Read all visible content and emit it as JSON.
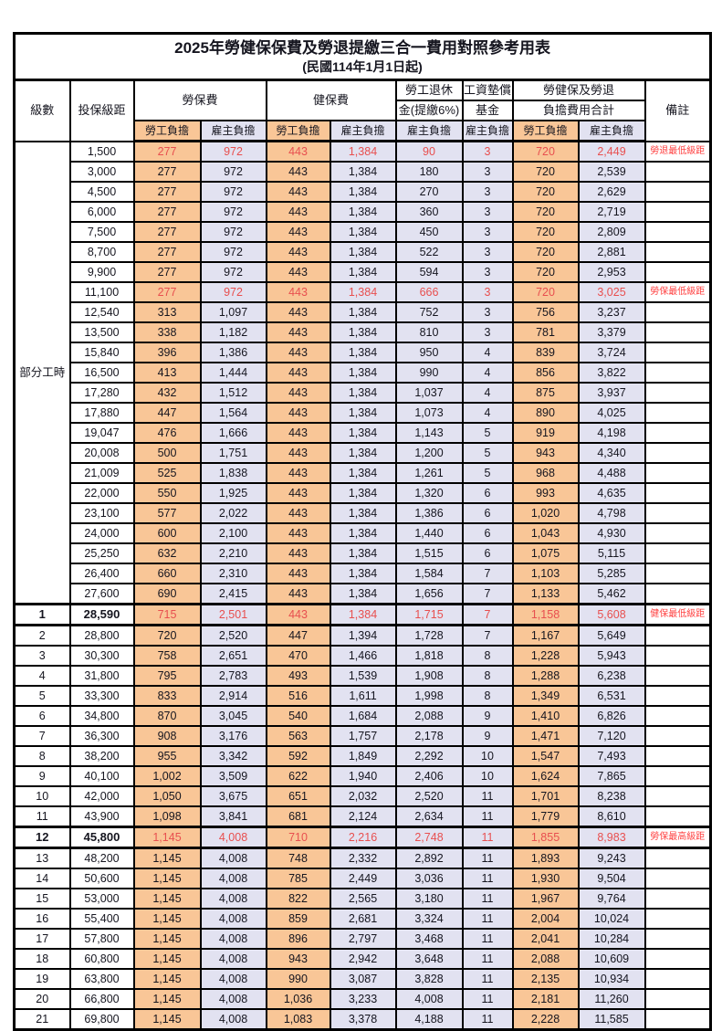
{
  "title": "2025年勞健保保費及勞退提繳三合一費用對照參考用表",
  "subtitle": "(民國114年1月1日起)",
  "colors": {
    "orange": "#F9C697",
    "lavender": "#E2E2F1",
    "highlight_red": "#E84F4F",
    "remark_red": "#FF4040"
  },
  "header": {
    "level": "級數",
    "bracket": "投保級距",
    "labor_insurance": "勞保費",
    "health_insurance": "健保費",
    "pension_line1": "勞工退休",
    "pension_line2": "金(提繳6%)",
    "wage_fund_line1": "工資墊償",
    "wage_fund_line2": "基金",
    "total_line1": "勞健保及勞退",
    "total_line2": "負擔費用合計",
    "remark": "備註",
    "employee_burden": "勞工負擔",
    "employer_burden": "雇主負擔"
  },
  "group_label": "部分工時",
  "group_span": 23,
  "highlight_rows": [
    0,
    7,
    23,
    34
  ],
  "key_rows": [
    23,
    34
  ],
  "section_rows": [
    23,
    34
  ],
  "rows": [
    [
      "",
      "1,500",
      "277",
      "972",
      "443",
      "1,384",
      "90",
      "3",
      "720",
      "2,449",
      "勞退最低級距"
    ],
    [
      "",
      "3,000",
      "277",
      "972",
      "443",
      "1,384",
      "180",
      "3",
      "720",
      "2,539",
      ""
    ],
    [
      "",
      "4,500",
      "277",
      "972",
      "443",
      "1,384",
      "270",
      "3",
      "720",
      "2,629",
      ""
    ],
    [
      "",
      "6,000",
      "277",
      "972",
      "443",
      "1,384",
      "360",
      "3",
      "720",
      "2,719",
      ""
    ],
    [
      "",
      "7,500",
      "277",
      "972",
      "443",
      "1,384",
      "450",
      "3",
      "720",
      "2,809",
      ""
    ],
    [
      "",
      "8,700",
      "277",
      "972",
      "443",
      "1,384",
      "522",
      "3",
      "720",
      "2,881",
      ""
    ],
    [
      "",
      "9,900",
      "277",
      "972",
      "443",
      "1,384",
      "594",
      "3",
      "720",
      "2,953",
      ""
    ],
    [
      "",
      "11,100",
      "277",
      "972",
      "443",
      "1,384",
      "666",
      "3",
      "720",
      "3,025",
      "勞保最低級距"
    ],
    [
      "",
      "12,540",
      "313",
      "1,097",
      "443",
      "1,384",
      "752",
      "3",
      "756",
      "3,237",
      ""
    ],
    [
      "",
      "13,500",
      "338",
      "1,182",
      "443",
      "1,384",
      "810",
      "3",
      "781",
      "3,379",
      ""
    ],
    [
      "",
      "15,840",
      "396",
      "1,386",
      "443",
      "1,384",
      "950",
      "4",
      "839",
      "3,724",
      ""
    ],
    [
      "",
      "16,500",
      "413",
      "1,444",
      "443",
      "1,384",
      "990",
      "4",
      "856",
      "3,822",
      ""
    ],
    [
      "",
      "17,280",
      "432",
      "1,512",
      "443",
      "1,384",
      "1,037",
      "4",
      "875",
      "3,937",
      ""
    ],
    [
      "",
      "17,880",
      "447",
      "1,564",
      "443",
      "1,384",
      "1,073",
      "4",
      "890",
      "4,025",
      ""
    ],
    [
      "",
      "19,047",
      "476",
      "1,666",
      "443",
      "1,384",
      "1,143",
      "5",
      "919",
      "4,198",
      ""
    ],
    [
      "",
      "20,008",
      "500",
      "1,751",
      "443",
      "1,384",
      "1,200",
      "5",
      "943",
      "4,340",
      ""
    ],
    [
      "",
      "21,009",
      "525",
      "1,838",
      "443",
      "1,384",
      "1,261",
      "5",
      "968",
      "4,488",
      ""
    ],
    [
      "",
      "22,000",
      "550",
      "1,925",
      "443",
      "1,384",
      "1,320",
      "6",
      "993",
      "4,635",
      ""
    ],
    [
      "",
      "23,100",
      "577",
      "2,022",
      "443",
      "1,384",
      "1,386",
      "6",
      "1,020",
      "4,798",
      ""
    ],
    [
      "",
      "24,000",
      "600",
      "2,100",
      "443",
      "1,384",
      "1,440",
      "6",
      "1,043",
      "4,930",
      ""
    ],
    [
      "",
      "25,250",
      "632",
      "2,210",
      "443",
      "1,384",
      "1,515",
      "6",
      "1,075",
      "5,115",
      ""
    ],
    [
      "",
      "26,400",
      "660",
      "2,310",
      "443",
      "1,384",
      "1,584",
      "7",
      "1,103",
      "5,285",
      ""
    ],
    [
      "",
      "27,600",
      "690",
      "2,415",
      "443",
      "1,384",
      "1,656",
      "7",
      "1,133",
      "5,462",
      ""
    ],
    [
      "1",
      "28,590",
      "715",
      "2,501",
      "443",
      "1,384",
      "1,715",
      "7",
      "1,158",
      "5,608",
      "健保最低級距"
    ],
    [
      "2",
      "28,800",
      "720",
      "2,520",
      "447",
      "1,394",
      "1,728",
      "7",
      "1,167",
      "5,649",
      ""
    ],
    [
      "3",
      "30,300",
      "758",
      "2,651",
      "470",
      "1,466",
      "1,818",
      "8",
      "1,228",
      "5,943",
      ""
    ],
    [
      "4",
      "31,800",
      "795",
      "2,783",
      "493",
      "1,539",
      "1,908",
      "8",
      "1,288",
      "6,238",
      ""
    ],
    [
      "5",
      "33,300",
      "833",
      "2,914",
      "516",
      "1,611",
      "1,998",
      "8",
      "1,349",
      "6,531",
      ""
    ],
    [
      "6",
      "34,800",
      "870",
      "3,045",
      "540",
      "1,684",
      "2,088",
      "9",
      "1,410",
      "6,826",
      ""
    ],
    [
      "7",
      "36,300",
      "908",
      "3,176",
      "563",
      "1,757",
      "2,178",
      "9",
      "1,471",
      "7,120",
      ""
    ],
    [
      "8",
      "38,200",
      "955",
      "3,342",
      "592",
      "1,849",
      "2,292",
      "10",
      "1,547",
      "7,493",
      ""
    ],
    [
      "9",
      "40,100",
      "1,002",
      "3,509",
      "622",
      "1,940",
      "2,406",
      "10",
      "1,624",
      "7,865",
      ""
    ],
    [
      "10",
      "42,000",
      "1,050",
      "3,675",
      "651",
      "2,032",
      "2,520",
      "11",
      "1,701",
      "8,238",
      ""
    ],
    [
      "11",
      "43,900",
      "1,098",
      "3,841",
      "681",
      "2,124",
      "2,634",
      "11",
      "1,779",
      "8,610",
      ""
    ],
    [
      "12",
      "45,800",
      "1,145",
      "4,008",
      "710",
      "2,216",
      "2,748",
      "11",
      "1,855",
      "8,983",
      "勞保最高級距"
    ],
    [
      "13",
      "48,200",
      "1,145",
      "4,008",
      "748",
      "2,332",
      "2,892",
      "11",
      "1,893",
      "9,243",
      ""
    ],
    [
      "14",
      "50,600",
      "1,145",
      "4,008",
      "785",
      "2,449",
      "3,036",
      "11",
      "1,930",
      "9,504",
      ""
    ],
    [
      "15",
      "53,000",
      "1,145",
      "4,008",
      "822",
      "2,565",
      "3,180",
      "11",
      "1,967",
      "9,764",
      ""
    ],
    [
      "16",
      "55,400",
      "1,145",
      "4,008",
      "859",
      "2,681",
      "3,324",
      "11",
      "2,004",
      "10,024",
      ""
    ],
    [
      "17",
      "57,800",
      "1,145",
      "4,008",
      "896",
      "2,797",
      "3,468",
      "11",
      "2,041",
      "10,284",
      ""
    ],
    [
      "18",
      "60,800",
      "1,145",
      "4,008",
      "943",
      "2,942",
      "3,648",
      "11",
      "2,088",
      "10,609",
      ""
    ],
    [
      "19",
      "63,800",
      "1,145",
      "4,008",
      "990",
      "3,087",
      "3,828",
      "11",
      "2,135",
      "10,934",
      ""
    ],
    [
      "20",
      "66,800",
      "1,145",
      "4,008",
      "1,036",
      "3,233",
      "4,008",
      "11",
      "2,181",
      "11,260",
      ""
    ],
    [
      "21",
      "69,800",
      "1,145",
      "4,008",
      "1,083",
      "3,378",
      "4,188",
      "11",
      "2,228",
      "11,585",
      ""
    ]
  ]
}
